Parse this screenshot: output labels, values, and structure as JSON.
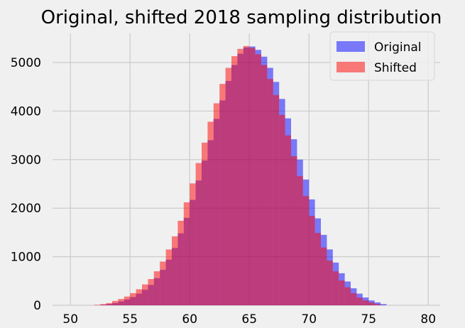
{
  "chart_data": {
    "type": "bar",
    "title": "Original, shifted 2018 sampling distribution",
    "xlabel": "",
    "ylabel": "",
    "xlim": [
      48.5,
      81
    ],
    "ylim": [
      0,
      5600
    ],
    "xticks": [
      "50",
      "55",
      "60",
      "65",
      "70",
      "75",
      "80"
    ],
    "yticks": [
      "0",
      "1000",
      "2000",
      "3000",
      "4000",
      "5000"
    ],
    "grid": true,
    "legend_position": "top-right",
    "bin_width": 0.5,
    "series": [
      {
        "name": "Original",
        "color": "#0000ff",
        "opacity": 0.5,
        "bin_starts": [
          52.5,
          53.0,
          53.5,
          54.0,
          54.5,
          55.0,
          55.5,
          56.0,
          56.5,
          57.0,
          57.5,
          58.0,
          58.5,
          59.0,
          59.5,
          60.0,
          60.5,
          61.0,
          61.5,
          62.0,
          62.5,
          63.0,
          63.5,
          64.0,
          64.5,
          65.0,
          65.5,
          66.0,
          66.5,
          67.0,
          67.5,
          68.0,
          68.5,
          69.0,
          69.5,
          70.0,
          70.5,
          71.0,
          71.5,
          72.0,
          72.5,
          73.0,
          73.5,
          74.0,
          74.5,
          75.0,
          75.5,
          76.0
        ],
        "values": [
          10,
          25,
          45,
          80,
          120,
          170,
          240,
          320,
          420,
          560,
          730,
          940,
          1180,
          1480,
          1800,
          2170,
          2570,
          2980,
          3400,
          3840,
          4220,
          4620,
          4950,
          5180,
          5310,
          5330,
          5260,
          5120,
          4890,
          4600,
          4250,
          3850,
          3420,
          3000,
          2590,
          2180,
          1790,
          1450,
          1150,
          880,
          660,
          490,
          350,
          240,
          160,
          100,
          60,
          25
        ]
      },
      {
        "name": "Shifted",
        "color": "#ff0000",
        "opacity": 0.5,
        "bin_starts": [
          52.0,
          52.5,
          53.0,
          53.5,
          54.0,
          54.5,
          55.0,
          55.5,
          56.0,
          56.5,
          57.0,
          57.5,
          58.0,
          58.5,
          59.0,
          59.5,
          60.0,
          60.5,
          61.0,
          61.5,
          62.0,
          62.5,
          63.0,
          63.5,
          64.0,
          64.5,
          65.0,
          65.5,
          66.0,
          66.5,
          67.0,
          67.5,
          68.0,
          68.5,
          69.0,
          69.5,
          70.0,
          70.5,
          71.0,
          71.5,
          72.0,
          72.5,
          73.0,
          73.5,
          74.0,
          74.5,
          75.0,
          75.5
        ],
        "values": [
          10,
          25,
          45,
          90,
          130,
          180,
          250,
          330,
          430,
          540,
          700,
          900,
          1150,
          1420,
          1740,
          2120,
          2510,
          2930,
          3350,
          3780,
          4160,
          4560,
          4890,
          5130,
          5280,
          5340,
          5300,
          5170,
          4950,
          4660,
          4330,
          3920,
          3500,
          3070,
          2660,
          2250,
          1840,
          1490,
          1190,
          920,
          700,
          510,
          370,
          250,
          160,
          100,
          60,
          25
        ]
      }
    ]
  }
}
